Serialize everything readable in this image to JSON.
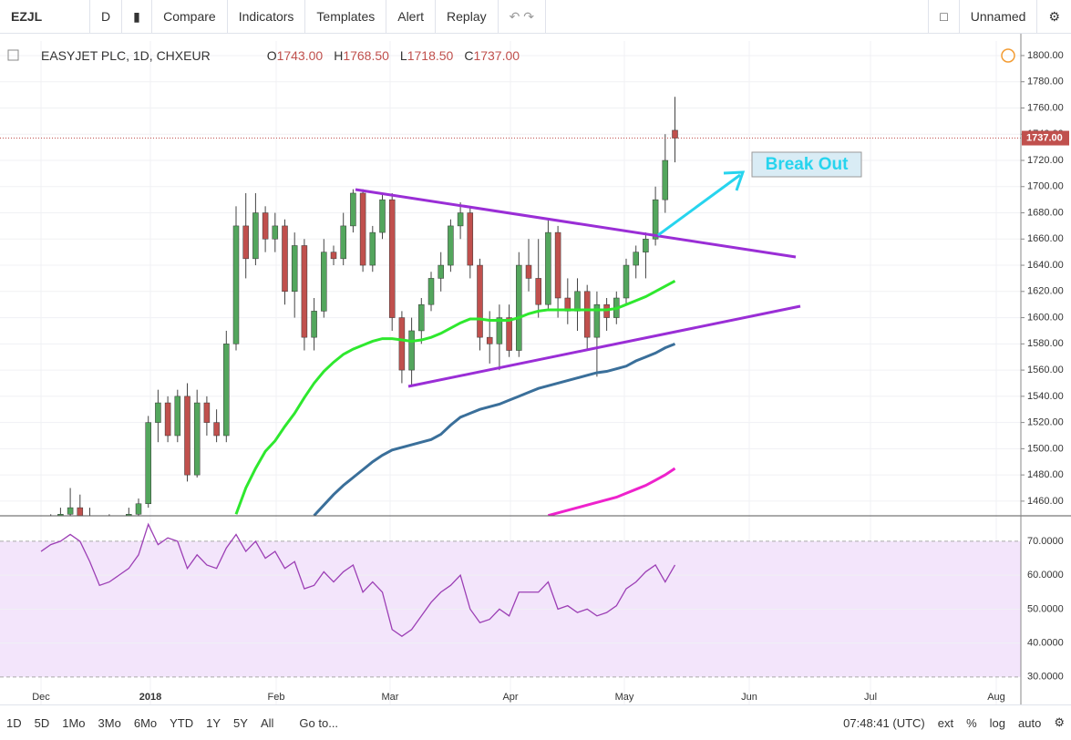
{
  "toolbar": {
    "symbol": "EZJL",
    "interval": "D",
    "items": [
      "Compare",
      "Indicators",
      "Templates",
      "Alert",
      "Replay"
    ],
    "layout": "Unnamed"
  },
  "chart_data": {
    "type": "candlestick",
    "title": "EASYJET PLC, 1D, CHXEUR",
    "ohlc_labels": [
      {
        "label": "O",
        "value": "1743.00"
      },
      {
        "label": "H",
        "value": "1768.50"
      },
      {
        "label": "L",
        "value": "1718.50"
      },
      {
        "label": "C",
        "value": "1737.00"
      }
    ],
    "candles": {
      "open": [
        1430,
        1440,
        1435,
        1450,
        1455,
        1445,
        1430,
        1440,
        1435,
        1440,
        1450,
        1458,
        1520,
        1535,
        1510,
        1540,
        1480,
        1535,
        1520,
        1510,
        1580,
        1670,
        1645,
        1680,
        1660,
        1670,
        1620,
        1655,
        1585,
        1605,
        1650,
        1645,
        1670,
        1695,
        1640,
        1665,
        1690,
        1600,
        1560,
        1590,
        1610,
        1630,
        1640,
        1670,
        1680,
        1640,
        1585,
        1580,
        1600,
        1575,
        1640,
        1630,
        1610,
        1665,
        1615,
        1605,
        1620,
        1585,
        1610,
        1600,
        1615,
        1640,
        1650,
        1660,
        1690,
        1743
      ],
      "high": [
        1445,
        1450,
        1455,
        1470,
        1465,
        1455,
        1445,
        1450,
        1445,
        1455,
        1462,
        1525,
        1545,
        1540,
        1545,
        1550,
        1545,
        1540,
        1530,
        1590,
        1685,
        1695,
        1695,
        1685,
        1680,
        1675,
        1665,
        1660,
        1615,
        1660,
        1655,
        1680,
        1698,
        1698,
        1670,
        1695,
        1695,
        1605,
        1600,
        1615,
        1635,
        1650,
        1675,
        1688,
        1685,
        1645,
        1605,
        1610,
        1610,
        1650,
        1660,
        1660,
        1675,
        1670,
        1630,
        1630,
        1625,
        1620,
        1615,
        1620,
        1645,
        1655,
        1665,
        1700,
        1740,
        1768.5
      ],
      "low": [
        1420,
        1425,
        1430,
        1440,
        1440,
        1425,
        1420,
        1425,
        1420,
        1430,
        1440,
        1455,
        1505,
        1505,
        1505,
        1475,
        1478,
        1510,
        1505,
        1505,
        1575,
        1630,
        1640,
        1650,
        1650,
        1610,
        1600,
        1575,
        1575,
        1600,
        1640,
        1640,
        1665,
        1635,
        1635,
        1660,
        1590,
        1550,
        1548,
        1580,
        1605,
        1620,
        1635,
        1660,
        1630,
        1575,
        1565,
        1560,
        1570,
        1570,
        1620,
        1600,
        1605,
        1600,
        1595,
        1590,
        1575,
        1555,
        1590,
        1595,
        1610,
        1630,
        1630,
        1655,
        1680,
        1718.5
      ],
      "close": [
        1440,
        1435,
        1450,
        1455,
        1445,
        1430,
        1440,
        1435,
        1440,
        1450,
        1458,
        1520,
        1535,
        1510,
        1540,
        1480,
        1535,
        1520,
        1510,
        1580,
        1670,
        1645,
        1680,
        1660,
        1670,
        1620,
        1655,
        1585,
        1605,
        1650,
        1645,
        1670,
        1695,
        1640,
        1665,
        1690,
        1600,
        1560,
        1590,
        1610,
        1630,
        1640,
        1670,
        1680,
        1640,
        1585,
        1580,
        1600,
        1575,
        1640,
        1630,
        1610,
        1665,
        1615,
        1605,
        1620,
        1585,
        1610,
        1600,
        1615,
        1640,
        1650,
        1660,
        1690,
        1720,
        1737
      ]
    },
    "up_color": "#53a65d",
    "down_color": "#c0504d",
    "series": [
      {
        "color": "#2ee82e",
        "values": [
          null,
          null,
          null,
          null,
          null,
          null,
          null,
          null,
          null,
          null,
          null,
          null,
          null,
          null,
          null,
          null,
          null,
          null,
          null,
          null,
          1450,
          1470,
          1485,
          1498,
          1506,
          1517,
          1527,
          1539,
          1550,
          1559,
          1566,
          1572,
          1576,
          1579,
          1582,
          1584,
          1584,
          1583,
          1582,
          1583,
          1585,
          1588,
          1592,
          1596,
          1599,
          1599,
          1598,
          1598,
          1598,
          1600,
          1603,
          1605,
          1606,
          1606,
          1606,
          1606,
          1606,
          1606,
          1606,
          1607,
          1610,
          1613,
          1616,
          1620,
          1624,
          1628
        ]
      },
      {
        "color": "#3a6f9a",
        "values": [
          null,
          null,
          null,
          null,
          null,
          null,
          null,
          null,
          null,
          null,
          null,
          null,
          null,
          null,
          null,
          null,
          null,
          null,
          null,
          null,
          null,
          null,
          null,
          null,
          null,
          null,
          null,
          null,
          1449,
          1457,
          1465,
          1472,
          1478,
          1484,
          1490,
          1495,
          1499,
          1501,
          1503,
          1505,
          1507,
          1511,
          1518,
          1524,
          1527,
          1530,
          1532,
          1534,
          1537,
          1540,
          1543,
          1546,
          1548,
          1550,
          1552,
          1554,
          1556,
          1558,
          1559,
          1561,
          1563,
          1567,
          1570,
          1573,
          1577,
          1580
        ]
      },
      {
        "color": "#ee22cc",
        "values": [
          null,
          null,
          null,
          null,
          null,
          null,
          null,
          null,
          null,
          null,
          null,
          null,
          null,
          null,
          null,
          null,
          null,
          null,
          null,
          null,
          null,
          null,
          null,
          null,
          null,
          null,
          null,
          null,
          null,
          null,
          null,
          null,
          null,
          null,
          null,
          null,
          null,
          null,
          null,
          null,
          null,
          null,
          null,
          null,
          null,
          null,
          null,
          null,
          null,
          null,
          null,
          null,
          1449,
          1451,
          1453,
          1455,
          1457,
          1459,
          1461,
          1463,
          1466,
          1469,
          1472,
          1476,
          1480,
          1485
        ]
      }
    ],
    "ylim": [
      1448.8,
      1811.1
    ],
    "yticks": [
      {
        "value": 1460,
        "label": "1460.00"
      },
      {
        "value": 1480,
        "label": "1480.00"
      },
      {
        "value": 1500,
        "label": "1500.00"
      },
      {
        "value": 1520,
        "label": "1520.00"
      },
      {
        "value": 1540,
        "label": "1540.00"
      },
      {
        "value": 1560,
        "label": "1560.00"
      },
      {
        "value": 1580,
        "label": "1580.00"
      },
      {
        "value": 1600,
        "label": "1600.00"
      },
      {
        "value": 1620,
        "label": "1620.00"
      },
      {
        "value": 1640,
        "label": "1640.00"
      },
      {
        "value": 1660,
        "label": "1660.00"
      },
      {
        "value": 1680,
        "label": "1680.00"
      },
      {
        "value": 1700,
        "label": "1700.00"
      },
      {
        "value": 1720,
        "label": "1720.00"
      },
      {
        "value": 1740,
        "label": "1740.00"
      },
      {
        "value": 1760,
        "label": "1760.00"
      },
      {
        "value": 1780,
        "label": "1780.00"
      },
      {
        "value": 1800,
        "label": "1800.00"
      }
    ],
    "last_price": {
      "value": 1737,
      "label": "1737.00"
    },
    "annotation": "Break Out",
    "x_labels": [
      "Dec",
      "2018",
      "Feb",
      "Mar",
      "Apr",
      "May",
      "Jun",
      "Jul",
      "Aug"
    ],
    "rsi": {
      "color": "#9c3fb5",
      "values": [
        67,
        69,
        70,
        72,
        70,
        64,
        57,
        58,
        60,
        62,
        66,
        75,
        69,
        71,
        70,
        62,
        66,
        63,
        62,
        68,
        72,
        67,
        70,
        65,
        67,
        62,
        64,
        56,
        57,
        61,
        58,
        61,
        63,
        55,
        58,
        55,
        44,
        42,
        44,
        48,
        52,
        55,
        57,
        60,
        50,
        46,
        47,
        50,
        48,
        55,
        55,
        55,
        58,
        50,
        51,
        49,
        50,
        48,
        49,
        51,
        56,
        58,
        61,
        63,
        58,
        63
      ],
      "ylim": [
        21.9,
        77.5
      ],
      "yticks": [
        {
          "value": 30,
          "label": "30.0000"
        },
        {
          "value": 40,
          "label": "40.0000"
        },
        {
          "value": 50,
          "label": "50.0000"
        },
        {
          "value": 60,
          "label": "60.0000"
        },
        {
          "value": 70,
          "label": "70.0000"
        }
      ]
    }
  },
  "bottom_bar": {
    "ranges": [
      "1D",
      "5D",
      "1Mo",
      "3Mo",
      "6Mo",
      "YTD",
      "1Y",
      "5Y",
      "All"
    ],
    "goto": "Go to...",
    "time": "07:48:41 (UTC)",
    "options": [
      "ext",
      "%",
      "log",
      "auto"
    ]
  }
}
